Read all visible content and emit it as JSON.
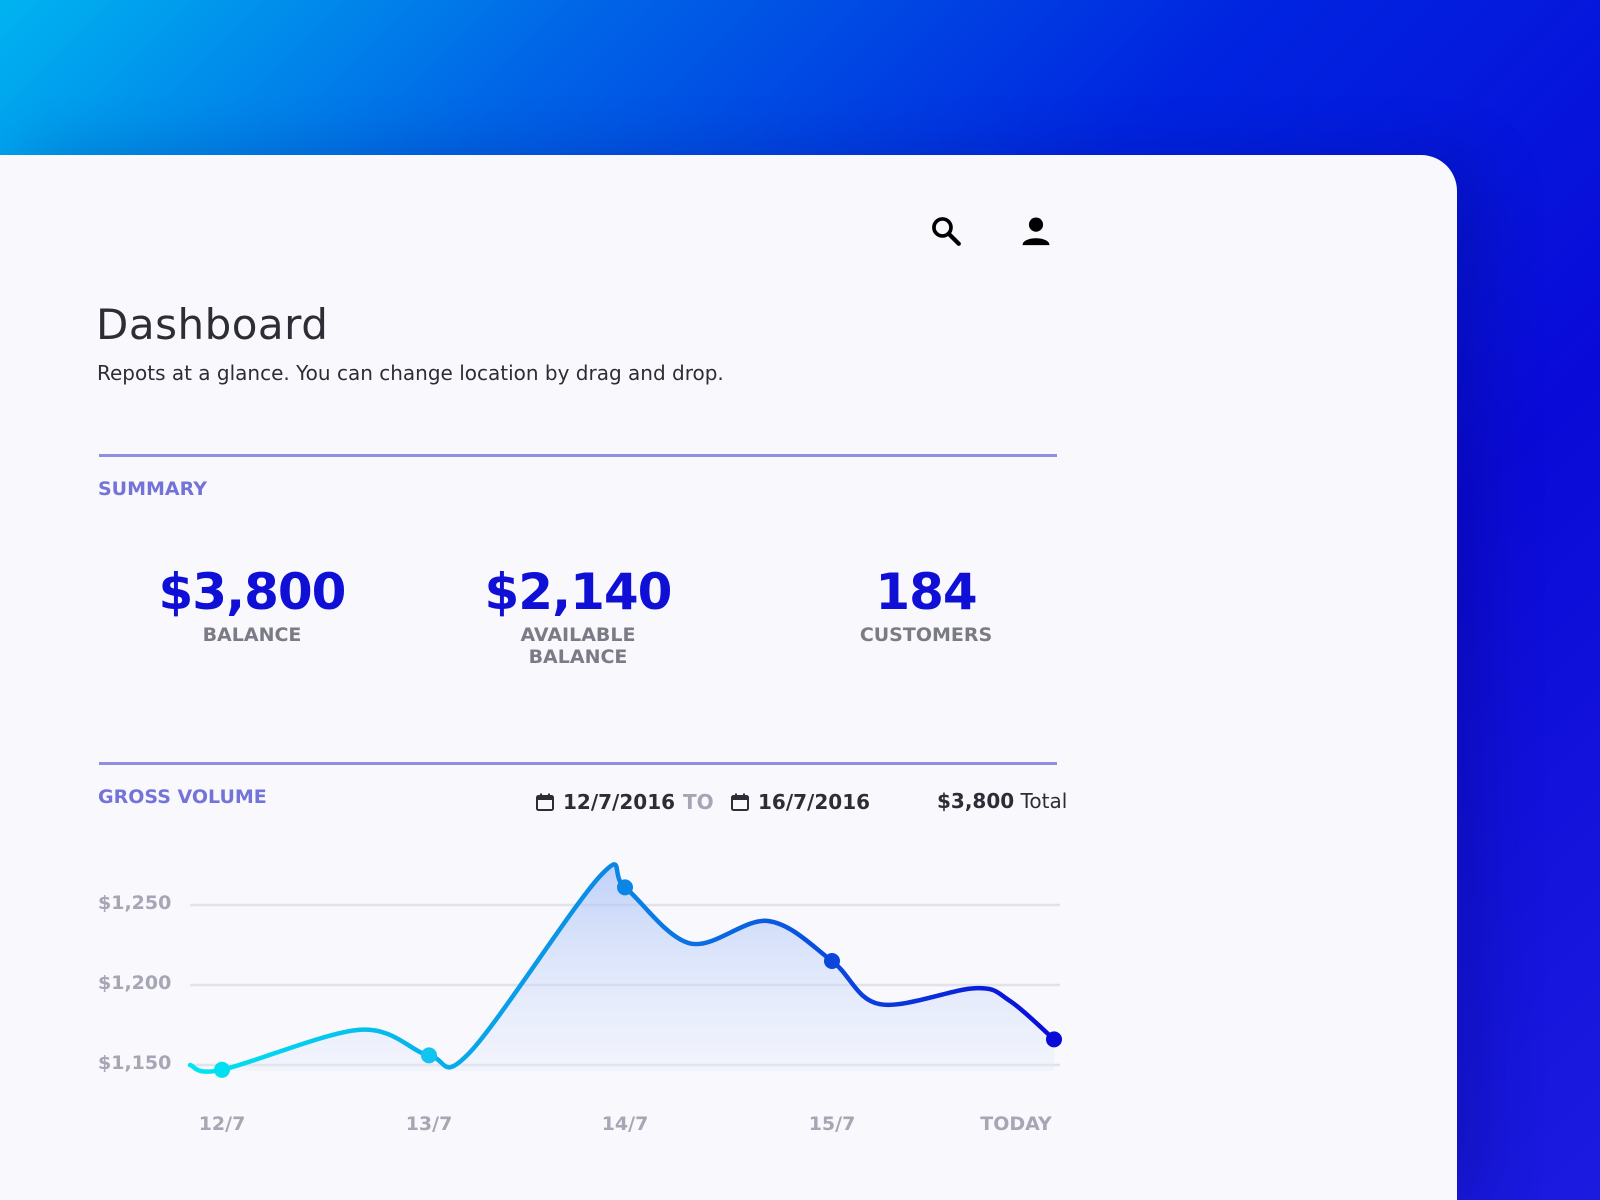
{
  "header": {
    "search_icon": "search-icon",
    "user_icon": "user-icon"
  },
  "page": {
    "title": "Dashboard",
    "subtitle": "Repots at a glance. You can change location by drag and drop."
  },
  "summary": {
    "label": "SUMMARY",
    "stats": [
      {
        "value": "$3,800",
        "label": "BALANCE"
      },
      {
        "value": "$2,140",
        "label": "AVAILABLE BALANCE"
      },
      {
        "value": "184",
        "label": "CUSTOMERS"
      }
    ]
  },
  "gross_volume": {
    "label": "GROSS VOLUME",
    "from_date": "12/7/2016",
    "to_label": "TO",
    "to_date": "16/7/2016",
    "total_value": "$3,800",
    "total_label": "Total"
  },
  "colors": {
    "accent": "#0f0fd6",
    "section_label": "#7474d8",
    "divider": "#8f8fe2",
    "line_start": "#00e0f0",
    "line_end": "#0a0ad8"
  },
  "chart_data": {
    "type": "area",
    "categories": [
      "12/7",
      "13/7",
      "14/7",
      "15/7",
      "TODAY"
    ],
    "y_ticks": [
      "$1,250",
      "$1,200",
      "$1,150"
    ],
    "ylim": [
      1150,
      1250
    ],
    "points": [
      {
        "x": "12/7",
        "y": 1147
      },
      {
        "x": "13/7",
        "y": 1156
      },
      {
        "x": "14/7",
        "y": 1261
      },
      {
        "x": "15/7",
        "y": 1215
      },
      {
        "x": "TODAY",
        "y": 1166
      }
    ],
    "grid": true
  }
}
